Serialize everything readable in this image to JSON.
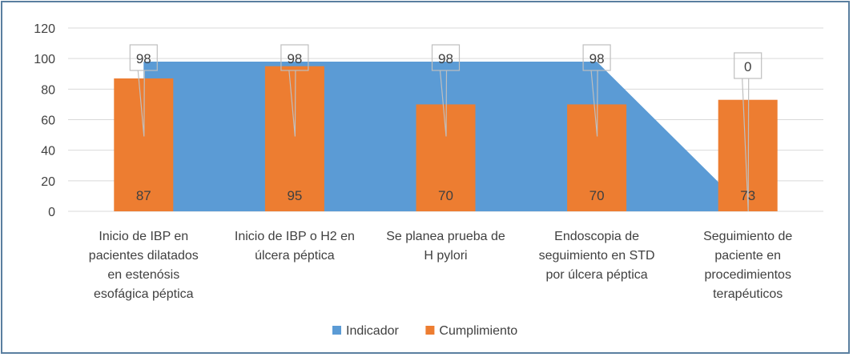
{
  "chart_data": {
    "type": "bar",
    "title": "",
    "xlabel": "",
    "ylabel": "",
    "ylim": [
      0,
      120
    ],
    "yticks": [
      0,
      20,
      40,
      60,
      80,
      100,
      120
    ],
    "grid": true,
    "legend_position": "bottom",
    "categories": [
      [
        "Inicio de IBP en",
        "pacientes dilatados",
        "en estenósis",
        "esofágica péptica"
      ],
      [
        "Inicio de IBP o H2 en",
        "úlcera péptica"
      ],
      [
        "Se planea prueba de",
        "H pylori"
      ],
      [
        "Endoscopia de",
        "seguimiento en STD",
        "por úlcera péptica"
      ],
      [
        "Seguimiento de",
        "paciente en",
        "procedimientos",
        "terapéuticos"
      ]
    ],
    "series": [
      {
        "name": "Indicador",
        "type": "area",
        "color": "#5b9bd5",
        "values": [
          98,
          98,
          98,
          98,
          0
        ]
      },
      {
        "name": "Cumplimiento",
        "type": "bar",
        "color": "#ed7d31",
        "values": [
          87,
          95,
          70,
          70,
          73
        ]
      }
    ],
    "data_labels": {
      "Indicador": [
        "98",
        "98",
        "98",
        "98",
        "0"
      ],
      "Cumplimiento": [
        "87",
        "95",
        "70",
        "70",
        "73"
      ]
    }
  }
}
